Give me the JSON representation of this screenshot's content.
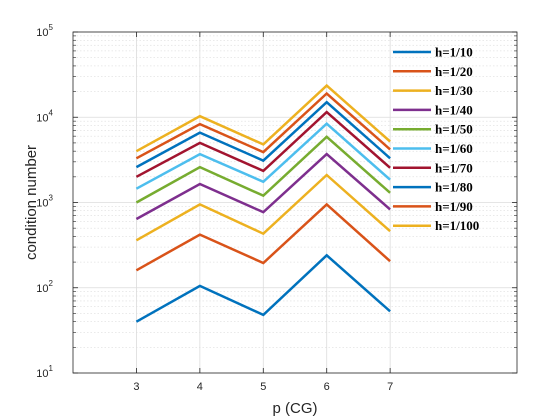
{
  "chart_data": {
    "type": "line",
    "title": "",
    "xlabel": "p (CG)",
    "ylabel": "condition number",
    "x": [
      3,
      4,
      5,
      6,
      7
    ],
    "xlim": [
      2,
      9
    ],
    "x_ticks": [
      "3",
      "4",
      "5",
      "6",
      "7"
    ],
    "y_scale": "log",
    "ylim": [
      10,
      100000
    ],
    "y_ticks": [
      {
        "value": 10,
        "base": "10",
        "exp": "1"
      },
      {
        "value": 100,
        "base": "10",
        "exp": "2"
      },
      {
        "value": 1000,
        "base": "10",
        "exp": "3"
      },
      {
        "value": 10000,
        "base": "10",
        "exp": "4"
      },
      {
        "value": 100000,
        "base": "10",
        "exp": "5"
      }
    ],
    "grid": true,
    "legend_position": "top-right",
    "series": [
      {
        "name": "h=1/10",
        "color": "#0072BD",
        "values": [
          40,
          105,
          48,
          240,
          53
        ]
      },
      {
        "name": "h=1/20",
        "color": "#D95319",
        "values": [
          160,
          420,
          195,
          950,
          205
        ]
      },
      {
        "name": "h=1/30",
        "color": "#EDB120",
        "values": [
          360,
          950,
          430,
          2100,
          460
        ]
      },
      {
        "name": "h=1/40",
        "color": "#7E2F8E",
        "values": [
          640,
          1650,
          770,
          3700,
          830
        ]
      },
      {
        "name": "h=1/50",
        "color": "#77AC30",
        "values": [
          1000,
          2600,
          1200,
          5900,
          1300
        ]
      },
      {
        "name": "h=1/60",
        "color": "#4DBEEE",
        "values": [
          1450,
          3700,
          1750,
          8400,
          1850
        ]
      },
      {
        "name": "h=1/70",
        "color": "#A2142F",
        "values": [
          2000,
          5000,
          2350,
          11500,
          2550
        ]
      },
      {
        "name": "h=1/80",
        "color": "#0072BD",
        "values": [
          2600,
          6600,
          3100,
          15000,
          3300
        ]
      },
      {
        "name": "h=1/90",
        "color": "#D95319",
        "values": [
          3300,
          8300,
          3900,
          19000,
          4200
        ]
      },
      {
        "name": "h=1/100",
        "color": "#EDB120",
        "values": [
          4000,
          10300,
          4800,
          23500,
          5200
        ]
      }
    ]
  }
}
